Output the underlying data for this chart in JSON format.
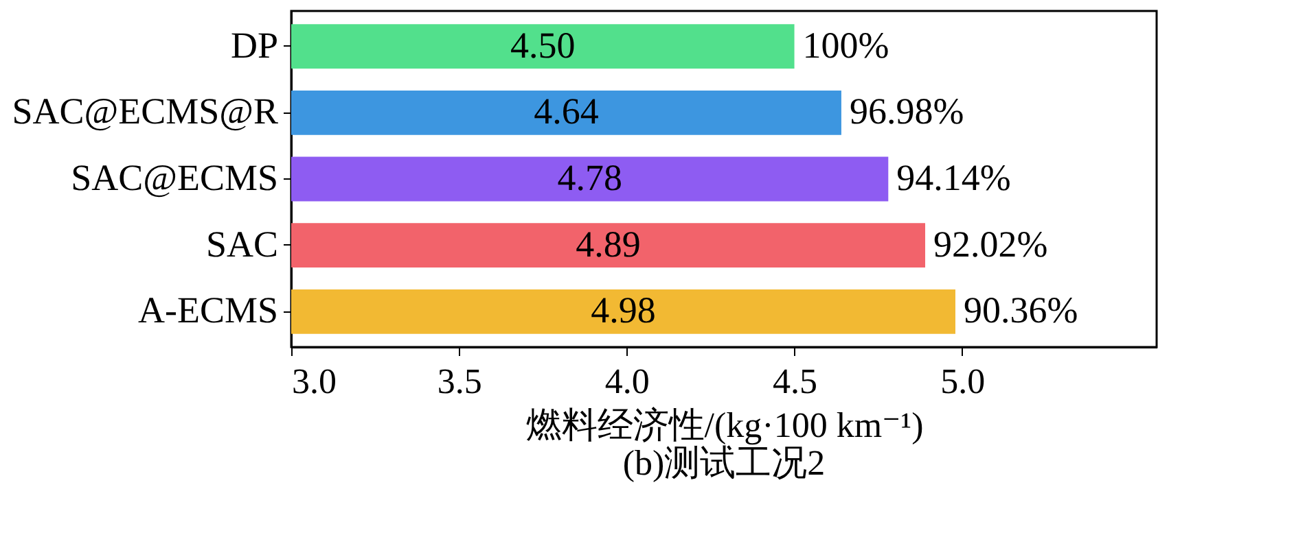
{
  "chart_data": {
    "type": "bar",
    "orientation": "horizontal",
    "title": "(b)测试工况2",
    "xlabel": "燃料经济性/(kg·100 km⁻¹)",
    "categories": [
      "DP",
      "SAC@ECMS@R",
      "SAC@ECMS",
      "SAC",
      "A-ECMS"
    ],
    "values": [
      4.5,
      4.64,
      4.78,
      4.89,
      4.98
    ],
    "colors": [
      "#52e08c",
      "#3d96e0",
      "#8e5cf2",
      "#f2636b",
      "#f2b933"
    ],
    "xlim": [
      3.0,
      5.58
    ],
    "xticks": [
      {
        "value": 3,
        "label": "3.0"
      },
      {
        "value": 3.5,
        "label": "3.5"
      },
      {
        "value": 4,
        "label": "4.0"
      },
      {
        "value": 4.5,
        "label": "4.5"
      },
      {
        "value": 5,
        "label": "5.0"
      }
    ],
    "value_labels": [
      "4.50",
      "4.64",
      "4.78",
      "4.89",
      "4.98"
    ],
    "annotations": [
      {
        "text": "100%",
        "x": 4.5,
        "y": "DP"
      },
      {
        "text": "96.98%",
        "x": 4.64,
        "y": "SAC@ECMS@R"
      },
      {
        "text": "94.14%",
        "x": 4.78,
        "y": "SAC@ECMS"
      },
      {
        "text": "92.02%",
        "x": 4.89,
        "y": "SAC"
      },
      {
        "text": "90.36%",
        "x": 4.98,
        "y": "A-ECMS"
      }
    ]
  }
}
